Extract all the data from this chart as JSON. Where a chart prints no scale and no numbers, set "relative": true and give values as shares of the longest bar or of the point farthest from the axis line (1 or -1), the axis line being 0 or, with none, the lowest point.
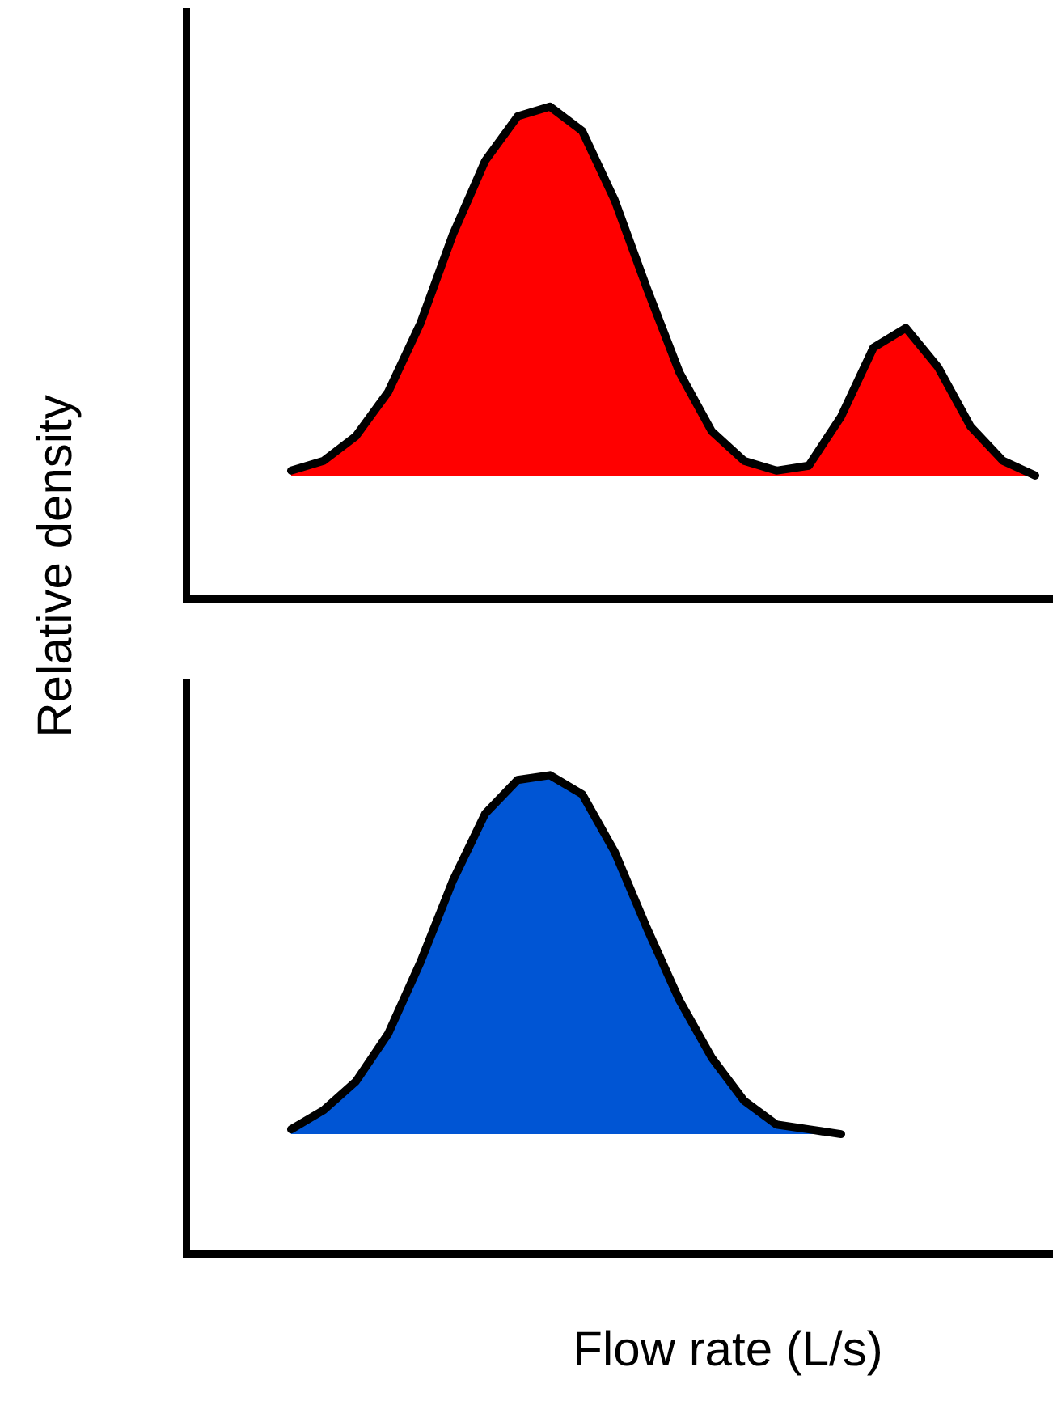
{
  "chart_data": [
    {
      "type": "area",
      "relative": true,
      "ylabel": "Relative density",
      "tick_labels": false,
      "legend": false,
      "categories": [
        null,
        null,
        null,
        null,
        null,
        null,
        null,
        null,
        null,
        null,
        null,
        null,
        null,
        null,
        null,
        null,
        null,
        null,
        null,
        null,
        null,
        null,
        null,
        null,
        null,
        null,
        null
      ],
      "series": [
        {
          "color": "#ff0000",
          "values": [
            null,
            null,
            null,
            0.26,
            0.28,
            0.33,
            0.42,
            0.56,
            0.74,
            0.89,
            0.98,
            1.0,
            0.95,
            0.81,
            0.63,
            0.46,
            0.34,
            0.28,
            0.26,
            0.27,
            0.37,
            0.51,
            0.55,
            0.47,
            0.35,
            0.28,
            0.25
          ]
        }
      ]
    },
    {
      "type": "area",
      "relative": true,
      "xlabel": "Flow rate (L/s)",
      "tick_labels": false,
      "legend": false,
      "categories": [
        null,
        null,
        null,
        null,
        null,
        null,
        null,
        null,
        null,
        null,
        null,
        null,
        null,
        null,
        null,
        null,
        null,
        null,
        null,
        null,
        null,
        null,
        null,
        null,
        null,
        null,
        null
      ],
      "series": [
        {
          "color": "#0055d4",
          "values": [
            null,
            null,
            null,
            0.26,
            0.3,
            0.36,
            0.46,
            0.61,
            0.78,
            0.92,
            0.99,
            1.0,
            0.96,
            0.84,
            0.68,
            0.53,
            0.41,
            0.32,
            0.27,
            0.26,
            0.25,
            null,
            null,
            null,
            null,
            null,
            null
          ]
        }
      ]
    }
  ]
}
